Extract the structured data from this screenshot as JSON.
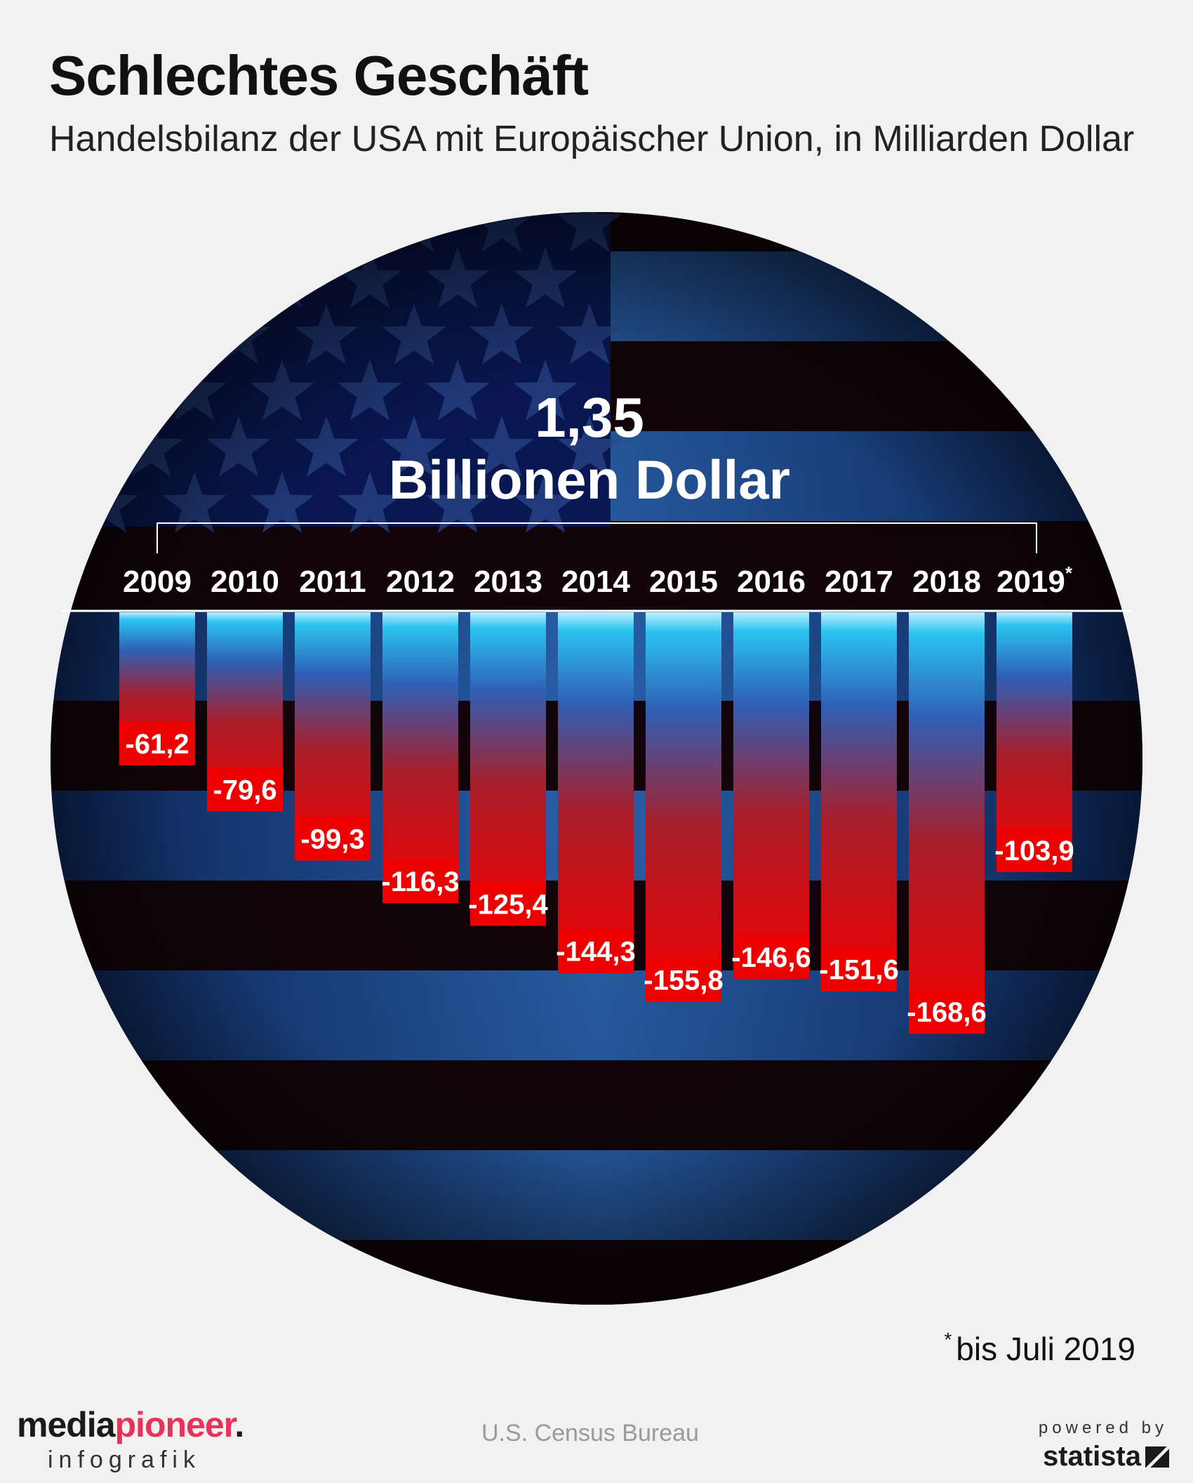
{
  "header": {
    "title": "Schlechtes Geschäft",
    "subtitle": "Handelsbilanz der USA mit Europäischer Union, in Milliarden Dollar"
  },
  "headline": {
    "number": "1,35",
    "unit": "Billionen Dollar"
  },
  "chart_data": {
    "type": "bar",
    "title": "Schlechtes Geschäft",
    "subtitle": "Handelsbilanz der USA mit Europäischer Union, in Milliarden Dollar",
    "categories": [
      "2009",
      "2010",
      "2011",
      "2012",
      "2013",
      "2014",
      "2015",
      "2016",
      "2017",
      "2018",
      "2019*"
    ],
    "values": [
      -61.2,
      -79.6,
      -99.3,
      -116.3,
      -125.4,
      -144.3,
      -155.8,
      -146.6,
      -151.6,
      -168.6,
      -103.9
    ],
    "value_labels": [
      "-61,2",
      "-79,6",
      "-99,3",
      "-116,3",
      "-125,4",
      "-144,3",
      "-155,8",
      "-146,6",
      "-151,6",
      "-168,6",
      "-103,9"
    ],
    "ylim": [
      -180,
      0
    ],
    "xlabel": "",
    "ylabel": "",
    "grid": false,
    "colors": {
      "bar_top": "#2bc3f0",
      "bar_mid": "#2f5fb5",
      "bar_bottom": "#ee0000",
      "label_bg": "#ee0000"
    }
  },
  "footnote": {
    "marker": "*",
    "text": "bis Juli 2019"
  },
  "footer": {
    "brand_main": "mediapioneer.",
    "brand_sub": "infografik",
    "source": "U.S. Census Bureau",
    "powered_by": "powered by",
    "statista": "statista"
  }
}
